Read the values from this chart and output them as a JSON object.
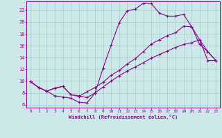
{
  "xlabel": "Windchill (Refroidissement éolien,°C)",
  "xlim": [
    -0.5,
    23.5
  ],
  "ylim": [
    5.5,
    23.5
  ],
  "xticks": [
    0,
    1,
    2,
    3,
    4,
    5,
    6,
    7,
    8,
    9,
    10,
    11,
    12,
    13,
    14,
    15,
    16,
    17,
    18,
    19,
    20,
    21,
    22,
    23
  ],
  "yticks": [
    6,
    8,
    10,
    12,
    14,
    16,
    18,
    20,
    22
  ],
  "bg_color": "#cce8e8",
  "line_color": "#880088",
  "grid_color": "#aacccc",
  "line1_x": [
    0,
    1,
    2,
    3,
    4,
    5,
    6,
    7,
    8,
    9,
    10,
    11,
    12,
    13,
    14,
    15,
    16,
    17,
    18,
    19,
    20,
    21,
    22,
    23
  ],
  "line1_y": [
    9.9,
    8.9,
    8.3,
    7.5,
    7.3,
    7.1,
    6.4,
    6.3,
    8.0,
    12.2,
    16.1,
    19.9,
    21.9,
    22.2,
    23.2,
    23.1,
    21.5,
    21.0,
    21.0,
    21.3,
    19.2,
    17.0,
    15.0,
    13.5
  ],
  "line2_x": [
    0,
    1,
    2,
    3,
    4,
    5,
    6,
    7,
    8,
    9,
    10,
    11,
    12,
    13,
    14,
    15,
    16,
    17,
    18,
    19,
    20,
    21,
    22,
    23
  ],
  "line2_y": [
    9.9,
    8.9,
    8.3,
    8.8,
    9.1,
    7.7,
    7.4,
    8.2,
    8.9,
    9.8,
    11.0,
    11.8,
    12.9,
    13.8,
    15.0,
    16.3,
    17.0,
    17.7,
    18.2,
    19.3,
    19.2,
    16.2,
    15.0,
    13.5
  ],
  "line3_x": [
    0,
    1,
    2,
    3,
    4,
    5,
    6,
    7,
    8,
    9,
    10,
    11,
    12,
    13,
    14,
    15,
    16,
    17,
    18,
    19,
    20,
    21,
    22,
    23
  ],
  "line3_y": [
    9.9,
    8.9,
    8.3,
    8.8,
    9.1,
    7.7,
    7.5,
    7.2,
    8.0,
    9.0,
    10.0,
    10.9,
    11.7,
    12.4,
    13.1,
    13.9,
    14.5,
    15.1,
    15.7,
    16.2,
    16.5,
    17.0,
    13.5,
    13.5
  ]
}
